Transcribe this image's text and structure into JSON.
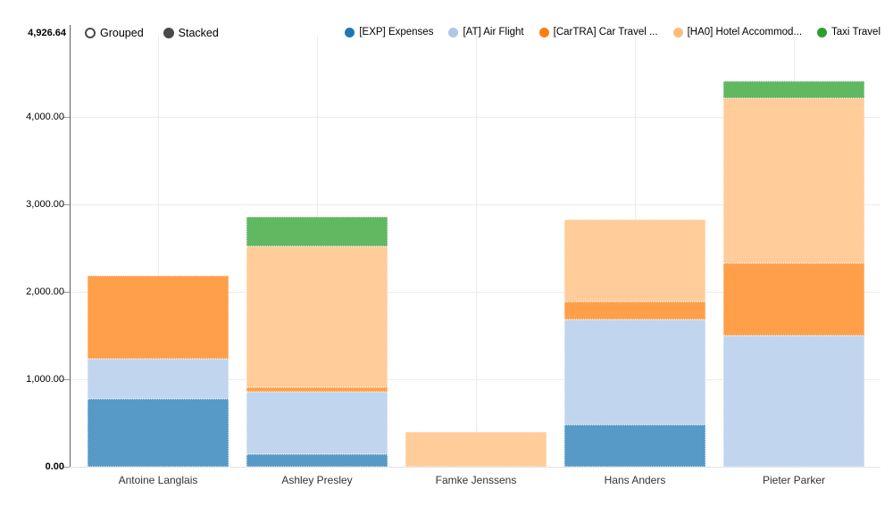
{
  "toolbar": {
    "mode_options": [
      {
        "label": "Grouped",
        "selected": false
      },
      {
        "label": "Stacked",
        "selected": true
      }
    ]
  },
  "chart_data": {
    "type": "bar",
    "stacked": true,
    "orientation": "vertical",
    "title": "",
    "xlabel": "",
    "ylabel": "",
    "grid": true,
    "legend_position": "top-right",
    "categories": [
      "Antoine Langlais",
      "Ashley Presley",
      "Famke Jenssens",
      "Hans Anders",
      "Pieter Parker"
    ],
    "series": [
      {
        "name": "[EXP] Expenses",
        "color": "#1f77b4",
        "fill": "#5799c7",
        "values": [
          780,
          140,
          0,
          480,
          0
        ]
      },
      {
        "name": "[AT] Air Flight",
        "color": "#aec7e8",
        "fill": "#c2d5ee",
        "values": [
          450,
          715,
          0,
          1200,
          1500
        ]
      },
      {
        "name": "[CarTRA] Car Travel ...",
        "color": "#ff7f0e",
        "fill": "#ff9f4a",
        "values": [
          950,
          50,
          0,
          205,
          825
        ]
      },
      {
        "name": "[HA0] Hotel Accommod...",
        "color": "#ffbb78",
        "fill": "#ffcc9a",
        "values": [
          0,
          1610,
          400,
          940,
          1890
        ]
      },
      {
        "name": "Taxi Travel",
        "color": "#2ca02c",
        "fill": "#61b861",
        "values": [
          0,
          340,
          0,
          0,
          195
        ]
      }
    ],
    "y_axis": {
      "min": 0,
      "max": 4926.64,
      "max_label": "4,926.64",
      "ticks": [
        {
          "value": 0,
          "label": "0.00",
          "bold": true
        },
        {
          "value": 1000,
          "label": "1,000.00",
          "bold": false
        },
        {
          "value": 2000,
          "label": "2,000.00",
          "bold": false
        },
        {
          "value": 3000,
          "label": "3,000.00",
          "bold": false
        },
        {
          "value": 4000,
          "label": "4,000.00",
          "bold": false
        }
      ]
    }
  }
}
